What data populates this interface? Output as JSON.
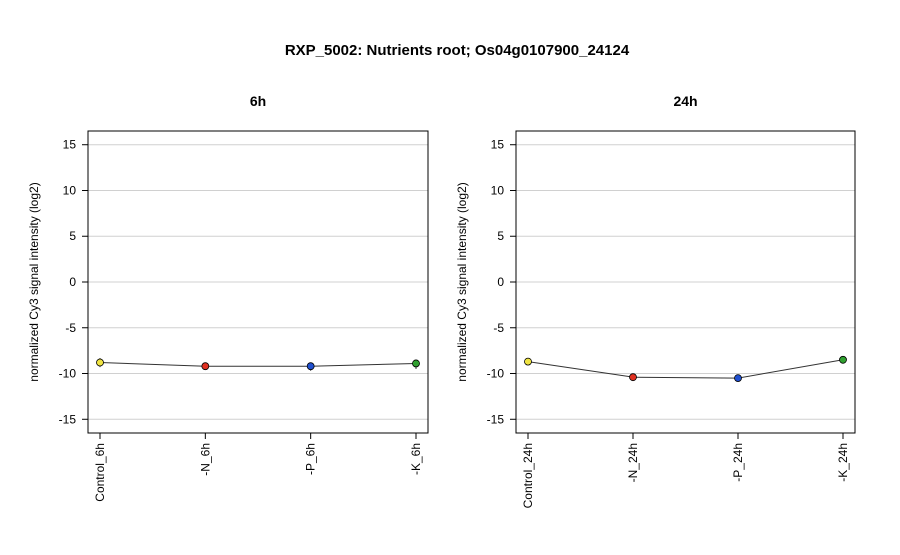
{
  "figure": {
    "title": "RXP_5002: Nutrients root; Os04g0107900_24124"
  },
  "chart_data": [
    {
      "type": "line",
      "title": "6h",
      "ylabel": "normalized Cy3 signal intensity (log2)",
      "xlabel": "",
      "ylim": [
        -16.5,
        16.5
      ],
      "yticks": [
        -15,
        -10,
        -5,
        0,
        5,
        10,
        15
      ],
      "grid": true,
      "categories": [
        "Control_6h",
        "-N_6h",
        "-P_6h",
        "-K_6h"
      ],
      "values": [
        -8.8,
        -9.2,
        -9.2,
        -8.9
      ],
      "error_low": [
        -9.3,
        -9.5,
        -9.7,
        -9.5
      ],
      "error_high": [
        -8.3,
        -9.0,
        -8.8,
        -8.5
      ],
      "point_colors": [
        "#f0e442",
        "#e03020",
        "#2050d0",
        "#30a030"
      ]
    },
    {
      "type": "line",
      "title": "24h",
      "ylabel": "normalized Cy3 signal intensity (log2)",
      "xlabel": "",
      "ylim": [
        -16.5,
        16.5
      ],
      "yticks": [
        -15,
        -10,
        -5,
        0,
        5,
        10,
        15
      ],
      "grid": true,
      "categories": [
        "Control_24h",
        "-N_24h",
        "-P_24h",
        "-K_24h"
      ],
      "values": [
        -8.7,
        -10.4,
        -10.5,
        -8.5
      ],
      "error_low": [
        -8.9,
        -10.6,
        -10.7,
        -8.8
      ],
      "error_high": [
        -8.4,
        -10.2,
        -10.3,
        -8.2
      ],
      "point_colors": [
        "#f0e442",
        "#e03020",
        "#2050d0",
        "#30a030"
      ]
    }
  ]
}
